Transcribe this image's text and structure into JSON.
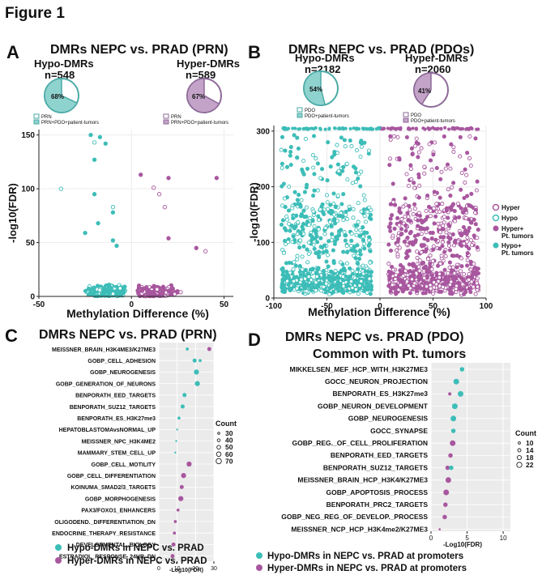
{
  "figure_title": "Figure 1",
  "colors": {
    "hypo": "#3dbdb8",
    "hyper": "#a8579f",
    "grid_bg": "#ebebeb",
    "pie_edge_a": "#4aaaa6",
    "pie_edge_b": "#8e6a99",
    "pie_fill_a": "#8fd3cf",
    "pie_fill_b": "#c3a3c8"
  },
  "panels": {
    "A": {
      "letter": "A",
      "title": "DMRs NEPC vs. PRAD (PRN)",
      "hypo_label": "Hypo-DMRs",
      "hypo_n": "n=548",
      "hypo_pct": "68%",
      "hyper_label": "Hyper-DMRs",
      "hyper_n": "n=589",
      "hyper_pct": "67%",
      "hypo_leg1": "PRN",
      "hypo_leg2": "PRN+PDO+patient-tumors",
      "hyper_leg1": "PRN",
      "hyper_leg2": "PRN+PDO+patient-tumors"
    },
    "B": {
      "letter": "B",
      "title": "DMRs NEPC vs. PRAD (PDOs)",
      "hypo_label": "Hypo-DMRs",
      "hypo_n": "n=2182",
      "hypo_pct": "54%",
      "hyper_label": "Hyper-DMRs",
      "hyper_n": "n=2060",
      "hyper_pct": "41%",
      "hypo_leg1": "PDO",
      "hypo_leg2": "PDO+patient-tumors",
      "hyper_leg1": "PDO",
      "hyper_leg2": "PDO+patient-tumors",
      "legend": [
        "Hyper",
        "Hypo",
        "Hyper+",
        "Pt. tumors",
        "Hypo+",
        "Pt. tumors"
      ]
    },
    "C": {
      "letter": "C",
      "title": "DMRs NEPC vs. PRAD (PRN)",
      "legend_hypo": "Hypo-DMRs in NEPC vs. PRAD",
      "legend_hyper": "Hyper-DMRs in NEPC vs. PRAD",
      "count_title": "Count",
      "count_labels": [
        "30",
        "40",
        "50",
        "60",
        "70"
      ]
    },
    "D": {
      "letter": "D",
      "title1": "DMRs NEPC vs. PRAD (PDO)",
      "title2": "Common with Pt. tumors",
      "legend_hypo": "Hypo-DMRs in NEPC vs. PRAD at promoters",
      "legend_hyper": "Hyper-DMRs in NEPC vs. PRAD at  promoters",
      "count_title": "Count",
      "count_labels": [
        "10",
        "14",
        "18",
        "22"
      ]
    }
  },
  "chart_data": [
    {
      "id": "A",
      "type": "scatter",
      "title": "DMRs NEPC vs. PRAD (PRN)",
      "xlabel": "Methylation Difference (%)",
      "ylabel": "-log10(FDR)",
      "xlim": [
        -50,
        55
      ],
      "ylim": [
        0,
        155
      ],
      "xticks": [
        -50,
        0,
        50
      ],
      "yticks": [
        0,
        50,
        100,
        150
      ],
      "highlight_points": [
        [
          -22,
          150
        ],
        [
          -20,
          143
        ],
        [
          -17,
          148
        ],
        [
          -20,
          127
        ],
        [
          -38,
          100
        ],
        [
          -20,
          95
        ],
        [
          -10,
          83
        ],
        [
          -10,
          78
        ],
        [
          -18,
          68
        ],
        [
          -10,
          52
        ],
        [
          -25,
          59
        ],
        [
          -8,
          47
        ],
        [
          5,
          113
        ],
        [
          12,
          101
        ],
        [
          20,
          110
        ],
        [
          46,
          110
        ],
        [
          18,
          83
        ],
        [
          20,
          54
        ],
        [
          35,
          45
        ],
        [
          40,
          42
        ],
        [
          15,
          95
        ],
        [
          -14,
          142
        ]
      ]
    },
    {
      "id": "B",
      "type": "scatter",
      "title": "DMRs NEPC vs. PRAD (PDOs)",
      "xlabel": "Methylation Difference (%)",
      "ylabel": "-log10(FDR)",
      "xlim": [
        -100,
        100
      ],
      "ylim": [
        0,
        310
      ],
      "xticks": [
        -100,
        -50,
        0,
        50,
        100
      ],
      "yticks": [
        0,
        100,
        200,
        300
      ],
      "series": [
        "Hyper",
        "Hypo",
        "Hyper+ Pt. tumors",
        "Hypo+ Pt. tumors"
      ]
    },
    {
      "id": "C",
      "type": "dot",
      "xlabel": "-Log10(FDR)",
      "xlim": [
        0,
        30
      ],
      "xticks": [
        0,
        10,
        20,
        30
      ],
      "terms": [
        "MEISSNER_BRAIN_H3K4ME3/K27ME3",
        "GOBP_CELL_ADHESION",
        "GOBP_NEUROGENESIS",
        "GOBP_GENERATION_OF_NEURONS",
        "BENPORATH_EED_TARGETS",
        "BENPORATH_SUZ12_TARGETS",
        "BENPORATH_ES_H3K27me3",
        "HEPATOBLASTOMAvsNORMAL_UP",
        "MEISSNER_NPC_H3K4ME2",
        "MAMMARY_STEM_CELL_UP",
        "GOBP_CELL_MOTILITY",
        "GOBP_CELL_DIFFERENTIATION",
        "KOINUMA_SMAD2/3_TARGETS",
        "GOBP_MORPHOGENESIS",
        "PAX3/FOXO1_ENHANCERS",
        "OLIGODEND._DIFFERENTIATION_DN",
        "ENDOCRINE_THERAPY_RESISTANCE",
        "DEVELOPMENTAL_BIOLOGY",
        "ESTRADIOL_RESPONSE_24HR_DN"
      ],
      "points": [
        {
          "term": 0,
          "group": "hypo",
          "x": 15.5,
          "count": 40
        },
        {
          "term": 0,
          "group": "hyper",
          "x": 27.5,
          "count": 50
        },
        {
          "term": 1,
          "group": "hypo",
          "x": 19.5,
          "count": 50
        },
        {
          "term": 1,
          "group": "hypo",
          "x": 22.5,
          "count": 40
        },
        {
          "term": 2,
          "group": "hypo",
          "x": 20.5,
          "count": 60
        },
        {
          "term": 3,
          "group": "hypo",
          "x": 21.0,
          "count": 60
        },
        {
          "term": 4,
          "group": "hypo",
          "x": 14.0,
          "count": 50
        },
        {
          "term": 5,
          "group": "hypo",
          "x": 13.0,
          "count": 50
        },
        {
          "term": 6,
          "group": "hypo",
          "x": 11.0,
          "count": 40
        },
        {
          "term": 7,
          "group": "hypo",
          "x": 10.0,
          "count": 30
        },
        {
          "term": 8,
          "group": "hypo",
          "x": 9.5,
          "count": 30
        },
        {
          "term": 9,
          "group": "hypo",
          "x": 9.0,
          "count": 30
        },
        {
          "term": 10,
          "group": "hyper",
          "x": 16.5,
          "count": 60
        },
        {
          "term": 11,
          "group": "hyper",
          "x": 13.5,
          "count": 60
        },
        {
          "term": 12,
          "group": "hyper",
          "x": 12.5,
          "count": 50
        },
        {
          "term": 13,
          "group": "hyper",
          "x": 12.0,
          "count": 60
        },
        {
          "term": 14,
          "group": "hyper",
          "x": 10.5,
          "count": 40
        },
        {
          "term": 15,
          "group": "hyper",
          "x": 9.0,
          "count": 40
        },
        {
          "term": 16,
          "group": "hyper",
          "x": 8.5,
          "count": 40
        },
        {
          "term": 17,
          "group": "hyper",
          "x": 8.0,
          "count": 50
        },
        {
          "term": 18,
          "group": "hyper",
          "x": 7.5,
          "count": 50
        }
      ]
    },
    {
      "id": "D",
      "type": "dot",
      "xlabel": "-Log10(FDR)",
      "xlim": [
        0,
        11
      ],
      "xticks": [
        0,
        5,
        10
      ],
      "terms": [
        "MIKKELSEN_MEF_HCP_WITH_H3K27ME3",
        "GOCC_NEURON_PROJECTION",
        "BENPORATH_ES_H3K27me3",
        "GOBP_NEURON_DEVELOPMENT",
        "GOBP_NEUROGENESIS",
        "GOCC_SYNAPSE",
        "GOBP_REG._OF_CELL_PROLIFERATION",
        "BENPORATH_EED_TARGETS",
        "BENPORATH_SUZ12_TARGETS",
        "MEISSNER_BRAIN_HCP_H3K4/K27ME3",
        "GOBP_APOPTOSIS_PROCESS",
        "BENPORATH_PRC2_TARGETS",
        "GOBP_NEG_REG_OF_DEVELOP._PROCESS",
        "MEISSNER_NCP_HCP_H3K4me2/K27ME3"
      ],
      "points": [
        {
          "term": 0,
          "group": "hypo",
          "x": 4.3,
          "count": 18
        },
        {
          "term": 1,
          "group": "hypo",
          "x": 3.5,
          "count": 22
        },
        {
          "term": 2,
          "group": "hyper",
          "x": 2.6,
          "count": 14
        },
        {
          "term": 2,
          "group": "hypo",
          "x": 4.1,
          "count": 22
        },
        {
          "term": 3,
          "group": "hypo",
          "x": 3.3,
          "count": 22
        },
        {
          "term": 4,
          "group": "hypo",
          "x": 3.1,
          "count": 22
        },
        {
          "term": 5,
          "group": "hypo",
          "x": 3.1,
          "count": 18
        },
        {
          "term": 6,
          "group": "hyper",
          "x": 3.0,
          "count": 22
        },
        {
          "term": 7,
          "group": "hyper",
          "x": 2.7,
          "count": 18
        },
        {
          "term": 8,
          "group": "hyper",
          "x": 2.3,
          "count": 18
        },
        {
          "term": 8,
          "group": "hypo",
          "x": 2.8,
          "count": 18
        },
        {
          "term": 9,
          "group": "hyper",
          "x": 2.4,
          "count": 22
        },
        {
          "term": 10,
          "group": "hyper",
          "x": 2.1,
          "count": 22
        },
        {
          "term": 11,
          "group": "hyper",
          "x": 2.0,
          "count": 18
        },
        {
          "term": 12,
          "group": "hyper",
          "x": 1.9,
          "count": 18
        },
        {
          "term": 13,
          "group": "hyper",
          "x": 1.2,
          "count": 10
        }
      ]
    }
  ]
}
